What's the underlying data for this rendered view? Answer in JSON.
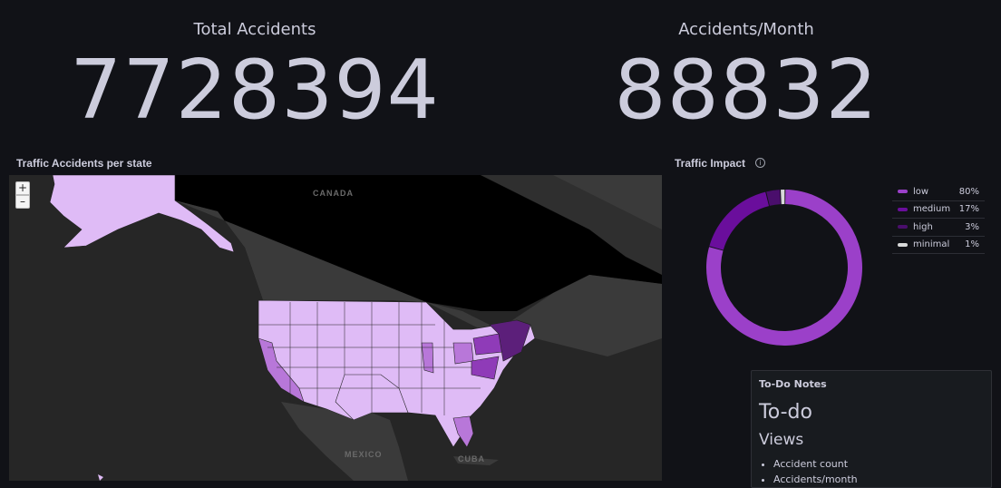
{
  "stats": {
    "total": {
      "title": "Total Accidents",
      "value": "7728394"
    },
    "monthly": {
      "title": "Accidents/Month",
      "value": "88832"
    }
  },
  "map_panel": {
    "title": "Traffic Accidents per state",
    "zoom_in": "+",
    "zoom_out": "–",
    "labels": {
      "canada": "CANADA",
      "mexico": "MEXICO",
      "cuba": "CUBA"
    },
    "colors": {
      "low": "#dfbbf6",
      "mid": "#b877d9",
      "high": "#8f3bb8",
      "top": "#5c1f7a",
      "land": "#3a3a3a",
      "water": "#262626",
      "dark": "#000000"
    }
  },
  "pie_panel": {
    "title": "Traffic Impact",
    "info_icon": "i",
    "chart_data": {
      "type": "pie",
      "donut": true,
      "legend_position": "right",
      "slices": [
        {
          "label": "low",
          "percent": "80%",
          "value": 80,
          "color": "#9b40c9"
        },
        {
          "label": "medium",
          "percent": "17%",
          "value": 17,
          "color": "#6a0e9c"
        },
        {
          "label": "high",
          "percent": "3%",
          "value": 3,
          "color": "#4a0e6c"
        },
        {
          "label": "minimal",
          "percent": "1%",
          "value": 1,
          "color": "#d8d9da"
        }
      ]
    }
  },
  "todo_panel": {
    "title": "To-Do Notes",
    "heading": "To-do",
    "subheading": "Views",
    "items": [
      "Accident count",
      "Accidents/month"
    ]
  }
}
